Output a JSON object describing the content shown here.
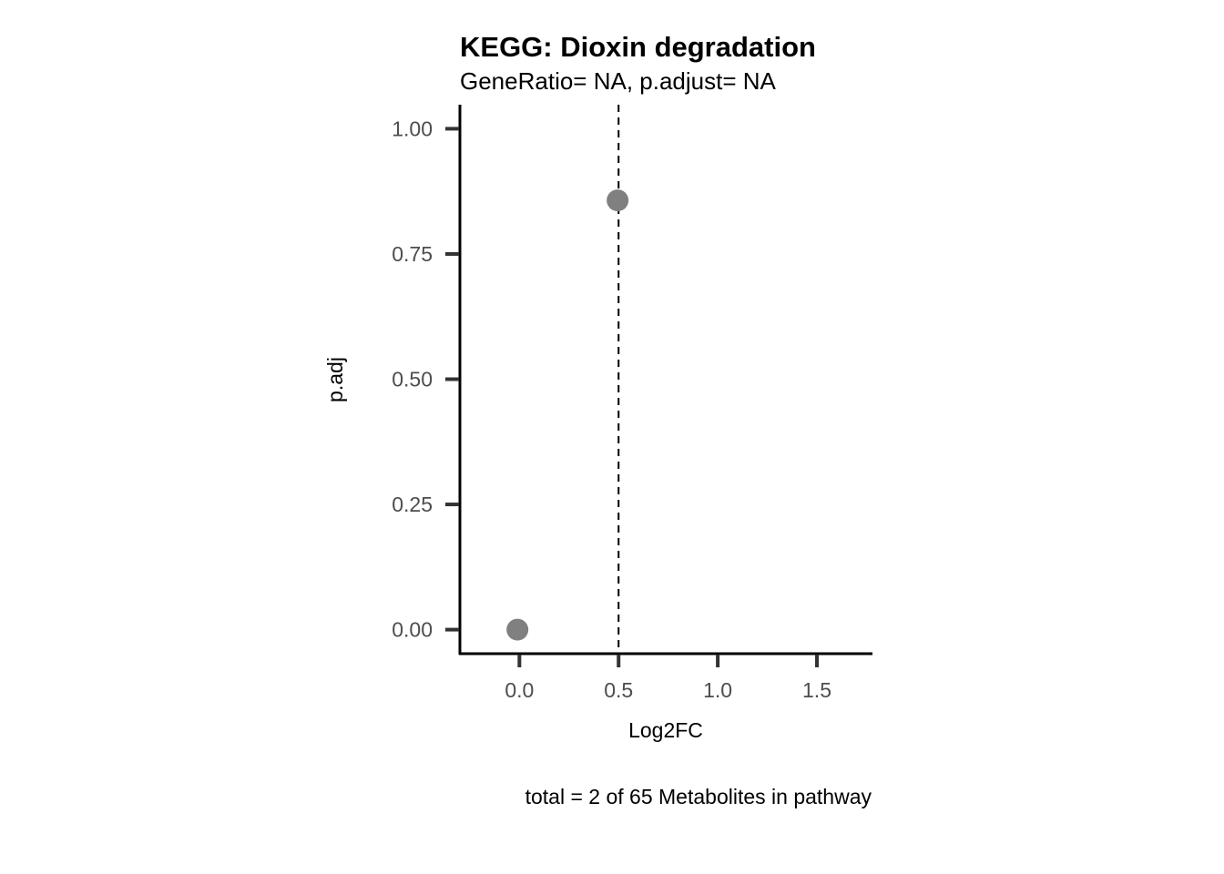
{
  "chart_data": {
    "type": "scatter",
    "title": "KEGG: Dioxin degradation",
    "subtitle": "GeneRatio= NA, p.adjust= NA",
    "xlabel": "Log2FC",
    "ylabel": "p.adj",
    "caption": "total = 2 of 65 Metabolites in pathway",
    "xlim": [
      -0.3,
      1.78
    ],
    "ylim": [
      -0.048,
      1.048
    ],
    "xticks": [
      0.0,
      0.5,
      1.0,
      1.5
    ],
    "xtick_labels": [
      "0.0",
      "0.5",
      "1.0",
      "1.5"
    ],
    "yticks": [
      0.0,
      0.25,
      0.5,
      0.75,
      1.0
    ],
    "ytick_labels": [
      "0.00",
      "0.25",
      "0.50",
      "0.75",
      "1.00"
    ],
    "points": [
      {
        "x": -0.01,
        "y": 0.0
      },
      {
        "x": 0.495,
        "y": 0.857
      }
    ],
    "vline": {
      "x": 0.5,
      "style": "dashed"
    },
    "point_color": "#808080",
    "grid": false,
    "legend": "none"
  }
}
